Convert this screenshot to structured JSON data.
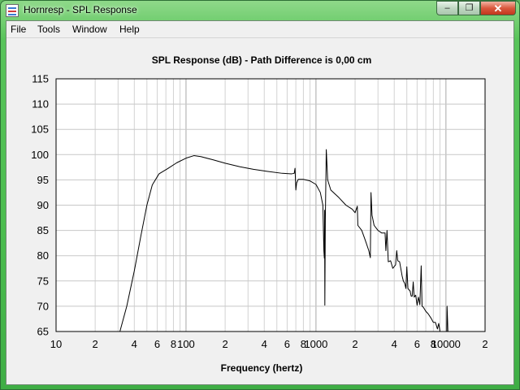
{
  "window": {
    "title": "Hornresp - SPL Response",
    "minimize_glyph": "–",
    "restore_glyph": "❐",
    "close_glyph": "✕"
  },
  "menu": {
    "items": [
      "File",
      "Tools",
      "Window",
      "Help"
    ]
  },
  "chart_data": {
    "type": "line",
    "title": "SPL Response (dB) - Path Difference is 0,00 cm",
    "xlabel": "Frequency (hertz)",
    "ylabel": "",
    "xscale": "log",
    "xlim": [
      10,
      20000
    ],
    "ylim": [
      65,
      115
    ],
    "yticks": [
      65,
      70,
      75,
      80,
      85,
      90,
      95,
      100,
      105,
      110,
      115
    ],
    "xticks": [
      {
        "v": 10,
        "label": "10"
      },
      {
        "v": 20,
        "label": "2"
      },
      {
        "v": 40,
        "label": "4"
      },
      {
        "v": 60,
        "label": "6"
      },
      {
        "v": 80,
        "label": "8"
      },
      {
        "v": 100,
        "label": "100"
      },
      {
        "v": 200,
        "label": "2"
      },
      {
        "v": 400,
        "label": "4"
      },
      {
        "v": 600,
        "label": "6"
      },
      {
        "v": 800,
        "label": "8"
      },
      {
        "v": 1000,
        "label": "1000"
      },
      {
        "v": 2000,
        "label": "2"
      },
      {
        "v": 4000,
        "label": "4"
      },
      {
        "v": 6000,
        "label": "6"
      },
      {
        "v": 8000,
        "label": "8"
      },
      {
        "v": 10000,
        "label": "10000"
      },
      {
        "v": 20000,
        "label": "2"
      }
    ],
    "grid": true,
    "series": [
      {
        "color": "#000000",
        "points": [
          [
            31,
            65
          ],
          [
            35,
            70
          ],
          [
            40,
            77
          ],
          [
            45,
            84
          ],
          [
            50,
            90
          ],
          [
            55,
            94
          ],
          [
            62,
            96.2
          ],
          [
            72,
            97.2
          ],
          [
            85,
            98.4
          ],
          [
            100,
            99.3
          ],
          [
            115,
            99.8
          ],
          [
            130,
            99.6
          ],
          [
            160,
            99
          ],
          [
            200,
            98.3
          ],
          [
            260,
            97.6
          ],
          [
            330,
            97.1
          ],
          [
            420,
            96.7
          ],
          [
            550,
            96.3
          ],
          [
            650,
            96.2
          ],
          [
            680,
            96.3
          ],
          [
            690,
            97.3
          ],
          [
            700,
            93
          ],
          [
            710,
            94.4
          ],
          [
            730,
            95.1
          ],
          [
            800,
            95.1
          ],
          [
            900,
            94.8
          ],
          [
            1000,
            94.1
          ],
          [
            1080,
            92.5
          ],
          [
            1130,
            90
          ],
          [
            1150,
            81
          ],
          [
            1160,
            79.5
          ],
          [
            1165,
            89
          ],
          [
            1170,
            70.2
          ],
          [
            1180,
            87
          ],
          [
            1200,
            101
          ],
          [
            1230,
            95
          ],
          [
            1300,
            93
          ],
          [
            1500,
            91.5
          ],
          [
            1700,
            90
          ],
          [
            1900,
            89.2
          ],
          [
            2000,
            88.5
          ],
          [
            2080,
            89.8
          ],
          [
            2100,
            86
          ],
          [
            2250,
            85
          ],
          [
            2400,
            83
          ],
          [
            2550,
            81
          ],
          [
            2620,
            79.6
          ],
          [
            2650,
            92.5
          ],
          [
            2700,
            88
          ],
          [
            2800,
            86
          ],
          [
            3000,
            85
          ],
          [
            3200,
            84.5
          ],
          [
            3400,
            84.5
          ],
          [
            3450,
            81
          ],
          [
            3520,
            85
          ],
          [
            3600,
            78.8
          ],
          [
            3750,
            79
          ],
          [
            3900,
            77.5
          ],
          [
            4100,
            78.2
          ],
          [
            4180,
            81
          ],
          [
            4260,
            79
          ],
          [
            4400,
            78.8
          ],
          [
            4600,
            76
          ],
          [
            4700,
            75
          ],
          [
            4820,
            74.5
          ],
          [
            4920,
            73.5
          ],
          [
            5000,
            77.8
          ],
          [
            5100,
            73.5
          ],
          [
            5300,
            73
          ],
          [
            5400,
            72
          ],
          [
            5500,
            72
          ],
          [
            5600,
            74.8
          ],
          [
            5700,
            71.8
          ],
          [
            5850,
            72.2
          ],
          [
            6000,
            70.2
          ],
          [
            6150,
            71.8
          ],
          [
            6300,
            70.3
          ],
          [
            6450,
            78
          ],
          [
            6550,
            70
          ],
          [
            6700,
            69.8
          ],
          [
            7000,
            69
          ],
          [
            7300,
            68.5
          ],
          [
            7700,
            67.6
          ],
          [
            8000,
            66.8
          ],
          [
            8300,
            66.8
          ],
          [
            8600,
            65.5
          ],
          [
            8800,
            66.6
          ],
          [
            9000,
            65
          ]
        ]
      },
      {
        "color": "#000000",
        "points": [
          [
            10150,
            65
          ],
          [
            10200,
            70
          ],
          [
            10300,
            67
          ],
          [
            10350,
            65
          ]
        ]
      }
    ]
  }
}
